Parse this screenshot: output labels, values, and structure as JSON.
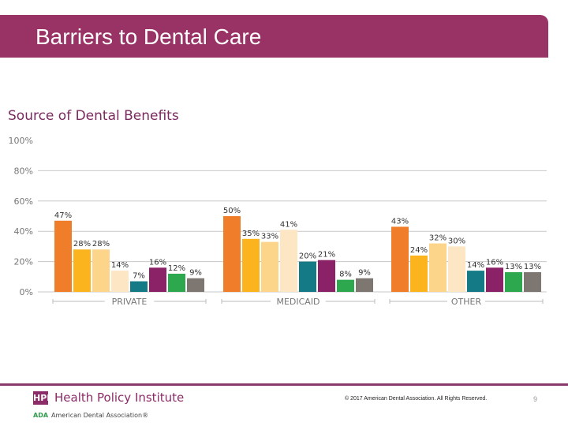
{
  "slide": {
    "title": "Barriers to Dental Care",
    "page_number": "9",
    "colors": {
      "title_bar": "#993366",
      "accent": "#8b2b67"
    }
  },
  "footer": {
    "hpi_badge": "HPI",
    "hpi_name": "Health Policy Institute",
    "ada_mark": "ADA",
    "ada_name": "American Dental Association®",
    "copyright": "© 2017 American Dental Association. All Rights Reserved."
  },
  "chart_data": {
    "type": "bar",
    "title": "Source of Dental Benefits",
    "xlabel": "",
    "ylabel": "",
    "ylim": [
      0,
      100
    ],
    "yticks": [
      "0%",
      "20%",
      "40%",
      "60%",
      "80%",
      "100%"
    ],
    "ytick_values": [
      0,
      20,
      40,
      60,
      80,
      100
    ],
    "grid": true,
    "legend": "none",
    "categories": [
      "PRIVATE",
      "MEDICAID",
      "OTHER"
    ],
    "series_colors": [
      "#f07d2a",
      "#fbb41e",
      "#fcd48a",
      "#fde6c3",
      "#137a86",
      "#8b2166",
      "#2ea84e",
      "#7e7670"
    ],
    "groups": [
      {
        "name": "PRIVATE",
        "values": [
          47,
          28,
          28,
          14,
          7,
          16,
          12,
          9
        ],
        "labels": [
          "47%",
          "28%",
          "28%",
          "14%",
          "7%",
          "16%",
          "12%",
          "9%"
        ]
      },
      {
        "name": "MEDICAID",
        "values": [
          50,
          35,
          33,
          41,
          20,
          21,
          8,
          9
        ],
        "labels": [
          "50%",
          "35%",
          "33%",
          "41%",
          "20%",
          "21%",
          "8%",
          "9%"
        ]
      },
      {
        "name": "OTHER",
        "values": [
          43,
          24,
          32,
          30,
          14,
          16,
          13,
          13
        ],
        "labels": [
          "43%",
          "24%",
          "32%",
          "30%",
          "14%",
          "16%",
          "13%",
          "13%"
        ]
      }
    ]
  }
}
